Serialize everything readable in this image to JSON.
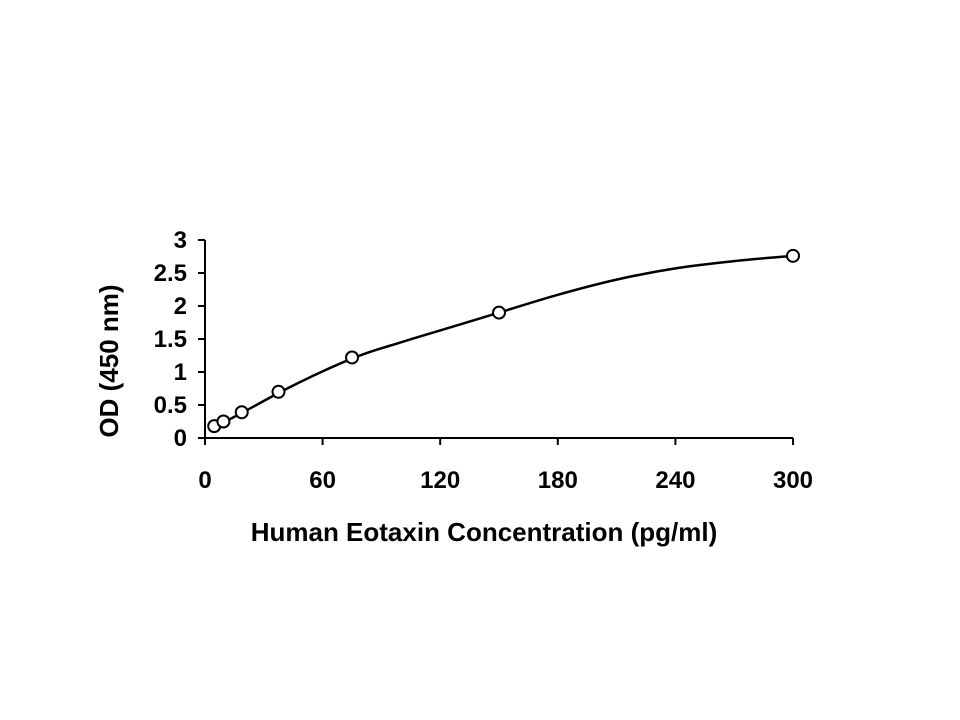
{
  "chart_data": {
    "type": "scatter",
    "title": "",
    "xlabel": "Human Eotaxin Concentration (pg/ml)",
    "ylabel": "OD (450 nm)",
    "xlim": [
      0,
      300
    ],
    "ylim": [
      0,
      3
    ],
    "xticks": [
      "0",
      "60",
      "120",
      "180",
      "240",
      "300"
    ],
    "yticks": [
      "0",
      "0.5",
      "1",
      "1.5",
      "2",
      "2.5",
      "3"
    ],
    "grid": false,
    "legend": "none",
    "series": [
      {
        "marker": "open-circle",
        "points": [
          {
            "x": 4.7,
            "y": 0.18
          },
          {
            "x": 9.4,
            "y": 0.25
          },
          {
            "x": 18.75,
            "y": 0.39
          },
          {
            "x": 37.5,
            "y": 0.7
          },
          {
            "x": 75,
            "y": 1.22
          },
          {
            "x": 150,
            "y": 1.9
          },
          {
            "x": 300,
            "y": 2.76
          }
        ]
      }
    ],
    "fit_curve": {
      "type": "smooth",
      "points": [
        {
          "x": 4.7,
          "y": 0.16
        },
        {
          "x": 20,
          "y": 0.4
        },
        {
          "x": 40,
          "y": 0.72
        },
        {
          "x": 60,
          "y": 1.01
        },
        {
          "x": 80,
          "y": 1.26
        },
        {
          "x": 100,
          "y": 1.45
        },
        {
          "x": 120,
          "y": 1.63
        },
        {
          "x": 150,
          "y": 1.9
        },
        {
          "x": 180,
          "y": 2.17
        },
        {
          "x": 210,
          "y": 2.4
        },
        {
          "x": 240,
          "y": 2.57
        },
        {
          "x": 270,
          "y": 2.68
        },
        {
          "x": 300,
          "y": 2.76
        }
      ]
    }
  }
}
